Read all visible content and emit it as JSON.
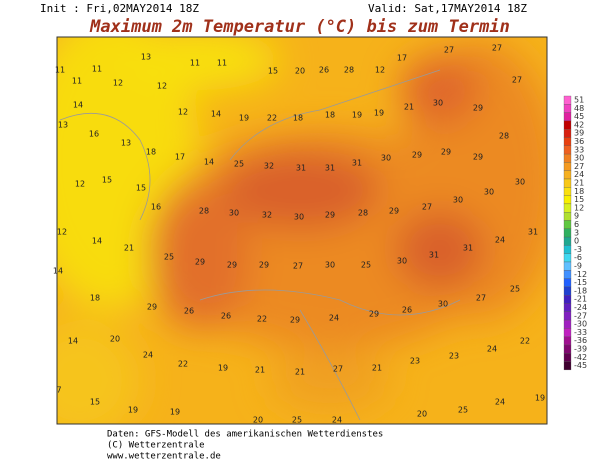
{
  "header": {
    "init": "Init : Fri,02MAY2014 18Z",
    "valid": "Valid: Sat,17MAY2014 18Z",
    "title": "Maximum 2m Temperatur (°C) bis zum Termin"
  },
  "legend": [
    51,
    48,
    45,
    42,
    39,
    36,
    33,
    30,
    27,
    24,
    21,
    18,
    15,
    12,
    9,
    6,
    3,
    0,
    -3,
    -6,
    -9,
    -12,
    -15,
    -18,
    -21,
    -24,
    -27,
    -30,
    -33,
    -36,
    -39,
    -42,
    -45
  ],
  "map": {
    "labels": [
      11,
      11,
      13,
      11,
      11,
      15,
      20,
      26,
      28,
      12,
      17,
      27,
      27,
      11,
      12,
      12,
      27,
      14,
      12,
      14,
      19,
      22,
      18,
      18,
      19,
      19,
      21,
      30,
      29,
      13,
      16,
      13,
      28,
      18,
      17,
      14,
      25,
      32,
      31,
      31,
      31,
      30,
      29,
      29,
      29,
      12,
      15,
      15,
      30,
      16,
      28,
      30,
      32,
      30,
      29,
      28,
      29,
      27,
      30,
      30,
      12,
      14,
      21,
      25,
      29,
      29,
      29,
      27,
      30,
      25,
      30,
      31,
      31,
      24,
      31,
      14,
      18,
      29,
      26,
      26,
      22,
      29,
      24,
      29,
      26,
      30,
      27,
      25,
      14,
      20,
      24,
      22,
      19,
      21,
      21,
      27,
      21,
      23,
      23,
      24,
      22,
      7,
      15,
      19,
      19,
      20,
      25,
      24,
      20,
      25,
      24,
      19
    ]
  },
  "footer": {
    "line1": "Daten: GFS-Modell des amerikanischen Wetterdienstes",
    "line2": "(C) Wetterzentrale",
    "line3": "www.wetterzentrale.de"
  }
}
